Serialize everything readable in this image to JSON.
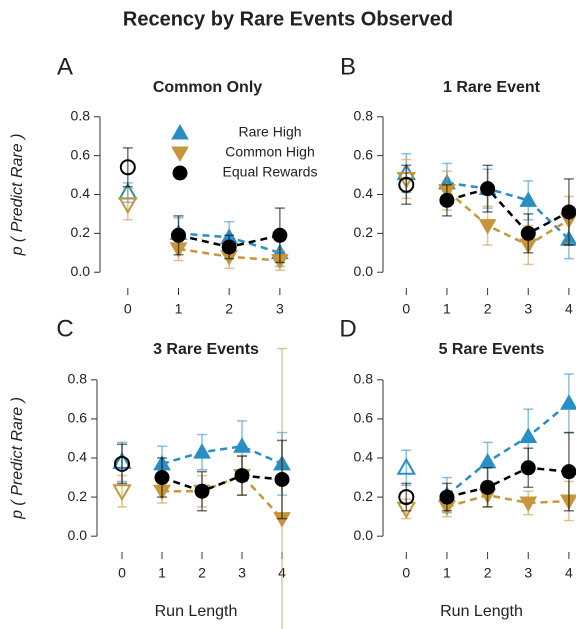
{
  "title": "Recency by Rare Events Observed",
  "chart_data": [
    {
      "type": "line",
      "label": "A",
      "title": "Common Only",
      "ylabel": "p ( Predict Rare )",
      "x": [
        0,
        1,
        2,
        3
      ],
      "xlim": [
        -0.45,
        3.2
      ],
      "xticks": [
        0,
        1,
        2,
        3
      ],
      "ylim": [
        -0.04,
        0.84
      ],
      "yticks": [
        {
          "value": 0,
          "label": "0.0"
        },
        0.2,
        0.4,
        0.6,
        0.8
      ],
      "series": [
        {
          "name": "Rare High",
          "color": "#2a8ec6",
          "marker": "triangle-up",
          "values": [
            0.41,
            0.2,
            0.18,
            0.1
          ],
          "errors": [
            0.05,
            0.08,
            0.08,
            0.07
          ]
        },
        {
          "name": "Common High",
          "color": "#c8963a",
          "marker": "triangle-down",
          "values": [
            0.35,
            0.12,
            0.08,
            0.06
          ],
          "errors": [
            0.08,
            0.06,
            0.06,
            0.05
          ]
        },
        {
          "name": "Equal Rewards",
          "color": "#000000",
          "marker": "circle",
          "values": [
            0.54,
            0.19,
            0.13,
            0.19
          ],
          "errors": [
            0.1,
            0.1,
            0.06,
            0.14
          ]
        }
      ]
    },
    {
      "type": "line",
      "label": "B",
      "title": "1 Rare Event",
      "x": [
        0,
        1,
        2,
        3,
        4
      ],
      "xlim": [
        -0.45,
        4.15
      ],
      "xticks": [
        0,
        1,
        2,
        3,
        4
      ],
      "ylim": [
        -0.04,
        0.84
      ],
      "yticks": [
        {
          "value": 0,
          "label": "0.0"
        },
        0.2,
        0.4,
        0.6,
        0.8
      ],
      "series": [
        {
          "color": "#2a8ec6",
          "marker": "triangle-up",
          "values": [
            0.51,
            0.46,
            0.43,
            0.37,
            0.17
          ],
          "errors": [
            0.1,
            0.1,
            0.1,
            0.1,
            0.1
          ]
        },
        {
          "color": "#c8963a",
          "marker": "triangle-down",
          "values": [
            0.48,
            0.42,
            0.24,
            0.14,
            0.27
          ],
          "errors": [
            0.1,
            0.1,
            0.1,
            0.1,
            0.12
          ]
        },
        {
          "color": "#000000",
          "marker": "circle",
          "values": [
            0.45,
            0.37,
            0.43,
            0.2,
            0.31
          ],
          "errors": [
            0.1,
            0.08,
            0.12,
            0.1,
            0.17
          ]
        }
      ]
    },
    {
      "type": "line",
      "label": "C",
      "title": "3 Rare Events",
      "ylabel": "p ( Predict Rare )",
      "xlabel": "Run Length",
      "x": [
        0,
        1,
        2,
        3,
        4
      ],
      "xlim": [
        -0.5,
        4.2
      ],
      "xticks": [
        0,
        1,
        2,
        3,
        4
      ],
      "ylim": [
        -0.04,
        0.84
      ],
      "yticks": [
        {
          "value": 0,
          "label": "0.0"
        },
        0.2,
        0.4,
        0.6,
        0.8
      ],
      "series": [
        {
          "color": "#2a8ec6",
          "marker": "triangle-up",
          "values": [
            0.38,
            0.37,
            0.43,
            0.46,
            0.37
          ],
          "errors": [
            0.1,
            0.09,
            0.09,
            0.13,
            0.16
          ]
        },
        {
          "color": "#c8963a",
          "marker": "triangle-down",
          "values": [
            0.23,
            0.23,
            0.23,
            0.31,
            0.09
          ],
          "errors": [
            0.08,
            0.06,
            0.08,
            0.1,
            0.87
          ]
        },
        {
          "color": "#000000",
          "marker": "circle",
          "values": [
            0.37,
            0.3,
            0.23,
            0.31,
            0.29
          ],
          "errors": [
            0.1,
            0.1,
            0.1,
            0.1,
            0.2
          ]
        }
      ]
    },
    {
      "type": "line",
      "label": "D",
      "title": "5 Rare Events",
      "xlabel": "Run Length",
      "x": [
        0,
        1,
        2,
        3,
        4
      ],
      "xlim": [
        -0.45,
        4.15
      ],
      "xticks": [
        0,
        1,
        2,
        3,
        4
      ],
      "ylim": [
        -0.04,
        0.84
      ],
      "yticks": [
        {
          "value": 0,
          "label": "0.0"
        },
        0.2,
        0.4,
        0.6,
        0.8
      ],
      "series": [
        {
          "color": "#2a8ec6",
          "marker": "triangle-up",
          "values": [
            0.35,
            0.21,
            0.38,
            0.51,
            0.68
          ],
          "errors": [
            0.09,
            0.09,
            0.1,
            0.14,
            0.15
          ]
        },
        {
          "color": "#c8963a",
          "marker": "triangle-down",
          "values": [
            0.14,
            0.15,
            0.21,
            0.17,
            0.18
          ],
          "errors": [
            0.05,
            0.05,
            0.06,
            0.06,
            0.1
          ]
        },
        {
          "color": "#000000",
          "marker": "circle",
          "values": [
            0.2,
            0.2,
            0.25,
            0.35,
            0.33
          ],
          "errors": [
            0.07,
            0.07,
            0.1,
            0.1,
            0.2
          ]
        }
      ]
    }
  ]
}
